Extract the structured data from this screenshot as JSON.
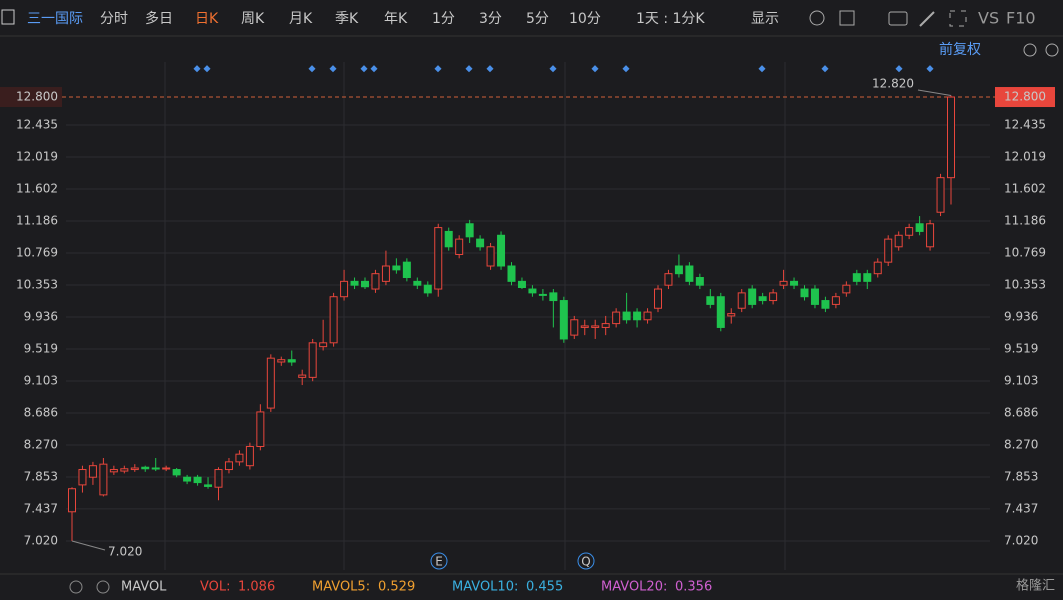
{
  "toolbar": {
    "stock": "三一国际",
    "tabs": [
      "分时",
      "多日",
      "日K",
      "周K",
      "月K",
      "季K",
      "年K",
      "1分",
      "3分",
      "5分",
      "10分"
    ],
    "period": "1天 : 1分K",
    "display": "显示",
    "vs": "VS",
    "f10": "F10",
    "adjust": "前复权"
  },
  "chart_data": {
    "type": "candlestick",
    "up_color": "#e8463c",
    "down_color": "#1fc34e",
    "grid": true,
    "ylim": [
      6.668,
      13.256
    ],
    "yticks": [
      {
        "value": 7.02,
        "label": "7.020"
      },
      {
        "value": 7.437,
        "label": "7.437"
      },
      {
        "value": 7.853,
        "label": "7.853"
      },
      {
        "value": 8.27,
        "label": "8.270"
      },
      {
        "value": 8.686,
        "label": "8.686"
      },
      {
        "value": 9.103,
        "label": "9.103"
      },
      {
        "value": 9.519,
        "label": "9.519"
      },
      {
        "value": 9.936,
        "label": "9.936"
      },
      {
        "value": 10.353,
        "label": "10.353"
      },
      {
        "value": 10.769,
        "label": "10.769"
      },
      {
        "value": 11.186,
        "label": "11.186"
      },
      {
        "value": 11.602,
        "label": "11.602"
      },
      {
        "value": 12.019,
        "label": "12.019"
      },
      {
        "value": 12.435,
        "label": "12.435"
      }
    ],
    "last_price": {
      "value": 12.8,
      "label": "12.800"
    },
    "max_label": {
      "value": 12.82,
      "label": "12.820"
    },
    "min_label": {
      "value": 7.02,
      "label": "7.020"
    },
    "markers": [
      "E",
      "Q"
    ],
    "open": [
      7.4,
      7.75,
      7.85,
      7.62,
      7.92,
      7.93,
      7.95,
      7.98,
      7.97,
      7.96,
      7.95,
      7.85,
      7.85,
      7.75,
      7.72,
      7.95,
      8.05,
      8.0,
      8.25,
      8.75,
      9.35,
      9.38,
      9.15,
      9.15,
      9.55,
      9.6,
      10.2,
      10.4,
      10.4,
      10.3,
      10.4,
      10.6,
      10.65,
      10.4,
      10.35,
      10.3,
      11.05,
      10.75,
      11.15,
      10.95,
      10.6,
      11.0,
      10.6,
      10.4,
      10.3,
      10.23,
      10.25,
      10.15,
      9.7,
      9.8,
      9.8,
      9.8,
      9.85,
      10.0,
      10.0,
      9.9,
      10.05,
      10.35,
      10.6,
      10.6,
      10.45,
      10.2,
      10.2,
      9.95,
      10.05,
      10.3,
      10.2,
      10.15,
      10.35,
      10.4,
      10.3,
      10.3,
      10.15,
      10.1,
      10.25,
      10.5,
      10.5,
      10.5,
      10.65,
      10.85,
      11.0,
      11.15,
      10.85,
      11.3,
      11.75
    ],
    "close": [
      7.7,
      7.95,
      8.0,
      8.02,
      7.95,
      7.96,
      7.97,
      7.96,
      7.96,
      7.97,
      7.88,
      7.8,
      7.78,
      7.73,
      7.95,
      8.05,
      8.15,
      8.25,
      8.7,
      9.4,
      9.38,
      9.35,
      9.18,
      9.6,
      9.6,
      10.2,
      10.4,
      10.35,
      10.33,
      10.5,
      10.6,
      10.55,
      10.45,
      10.35,
      10.25,
      11.1,
      10.85,
      10.95,
      10.98,
      10.85,
      10.85,
      10.6,
      10.4,
      10.32,
      10.25,
      10.22,
      10.15,
      9.65,
      9.9,
      9.82,
      9.82,
      9.85,
      10.0,
      9.9,
      9.9,
      10.0,
      10.3,
      10.5,
      10.5,
      10.4,
      10.35,
      10.1,
      9.8,
      9.98,
      10.25,
      10.1,
      10.15,
      10.25,
      10.4,
      10.35,
      10.2,
      10.1,
      10.05,
      10.2,
      10.35,
      10.4,
      10.4,
      10.65,
      10.95,
      11.0,
      11.1,
      11.05,
      11.15,
      11.75,
      12.8
    ],
    "high": [
      7.72,
      8.0,
      8.05,
      8.1,
      8.0,
      8.0,
      8.02,
      8.0,
      8.1,
      8.0,
      7.97,
      7.88,
      7.88,
      7.85,
      7.98,
      8.1,
      8.2,
      8.3,
      8.8,
      9.45,
      9.42,
      9.5,
      9.25,
      9.65,
      9.9,
      10.25,
      10.55,
      10.45,
      10.45,
      10.55,
      10.8,
      10.7,
      10.7,
      10.45,
      10.4,
      11.15,
      11.1,
      11.0,
      11.2,
      11.0,
      10.9,
      11.05,
      10.65,
      10.45,
      10.35,
      10.3,
      10.3,
      10.2,
      9.95,
      9.9,
      9.9,
      9.95,
      10.05,
      10.25,
      10.05,
      10.05,
      10.35,
      10.55,
      10.75,
      10.65,
      10.5,
      10.3,
      10.25,
      10.05,
      10.3,
      10.35,
      10.25,
      10.3,
      10.55,
      10.45,
      10.35,
      10.35,
      10.2,
      10.25,
      10.4,
      10.55,
      10.55,
      10.7,
      11.0,
      11.05,
      11.15,
      11.25,
      11.2,
      11.8,
      12.82
    ],
    "low": [
      7.02,
      7.65,
      7.75,
      7.6,
      7.88,
      7.9,
      7.92,
      7.92,
      7.93,
      7.93,
      7.85,
      7.76,
      7.74,
      7.7,
      7.55,
      7.9,
      8.0,
      7.95,
      8.2,
      8.7,
      9.3,
      9.3,
      9.05,
      9.1,
      9.5,
      9.55,
      10.15,
      10.3,
      10.3,
      10.25,
      10.35,
      10.5,
      10.4,
      10.3,
      10.2,
      10.2,
      10.8,
      10.7,
      10.9,
      10.8,
      10.55,
      10.55,
      10.35,
      10.3,
      10.2,
      10.15,
      9.8,
      9.6,
      9.65,
      9.7,
      9.65,
      9.7,
      9.8,
      9.85,
      9.8,
      9.85,
      10.0,
      10.3,
      10.45,
      10.35,
      10.3,
      10.05,
      9.75,
      9.85,
      10.0,
      10.05,
      10.1,
      10.1,
      10.3,
      10.3,
      10.15,
      10.05,
      10.0,
      10.05,
      10.2,
      10.35,
      10.3,
      10.45,
      10.6,
      10.8,
      10.95,
      11.0,
      10.8,
      11.25,
      11.4
    ]
  },
  "indicator": {
    "name": "MAVOL",
    "vol_label": "VOL:",
    "vol": "1.086",
    "ma5_label": "MAVOL5:",
    "ma5": "0.529",
    "ma10_label": "MAVOL10:",
    "ma10": "0.455",
    "ma20_label": "MAVOL20:",
    "ma20": "0.356"
  },
  "logo": "格隆汇"
}
